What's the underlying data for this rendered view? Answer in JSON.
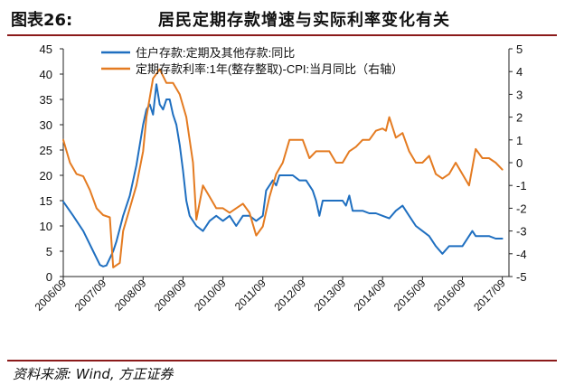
{
  "figure": {
    "number": "图表26:",
    "title": "居民定期存款增速与实际利率变化有关",
    "source": "资料来源: Wind, 方正证券"
  },
  "colors": {
    "series1": "#1f6fc0",
    "series2": "#e47b21",
    "rule": "#8b1a1a",
    "axis": "#222222"
  },
  "chart_data": {
    "type": "line",
    "grid": false,
    "legend_position": "top-left",
    "x_ticks": [
      "2006/09",
      "2007/09",
      "2008/09",
      "2009/09",
      "2010/09",
      "2011/09",
      "2012/09",
      "2013/09",
      "2014/09",
      "2015/09",
      "2016/09",
      "2017/09"
    ],
    "y_left": {
      "min": 0,
      "max": 45,
      "step": 5,
      "ticks": [
        "0",
        "5",
        "10",
        "15",
        "20",
        "25",
        "30",
        "35",
        "40",
        "45"
      ]
    },
    "y_right": {
      "min": -5,
      "max": 5,
      "step": 1,
      "ticks": [
        "-5",
        "-4",
        "-3",
        "-2",
        "-1",
        "0",
        "1",
        "2",
        "3",
        "4",
        "5"
      ]
    },
    "series": [
      {
        "name": "住户存款:定期及其他存款:同比",
        "axis": "left",
        "color": "#1f6fc0",
        "x": [
          "2006-09",
          "2006-12",
          "2007-03",
          "2007-06",
          "2007-08",
          "2007-09",
          "2007-10",
          "2007-12",
          "2008-01",
          "2008-03",
          "2008-05",
          "2008-07",
          "2008-09",
          "2008-10",
          "2008-11",
          "2008-12",
          "2009-01",
          "2009-02",
          "2009-03",
          "2009-04",
          "2009-05",
          "2009-06",
          "2009-07",
          "2009-08",
          "2009-09",
          "2009-10",
          "2009-11",
          "2010-01",
          "2010-03",
          "2010-05",
          "2010-07",
          "2010-09",
          "2010-11",
          "2011-01",
          "2011-03",
          "2011-05",
          "2011-07",
          "2011-09",
          "2011-10",
          "2011-12",
          "2012-01",
          "2012-02",
          "2012-04",
          "2012-06",
          "2012-08",
          "2012-10",
          "2012-12",
          "2013-01",
          "2013-02",
          "2013-03",
          "2013-05",
          "2013-07",
          "2013-09",
          "2013-10",
          "2013-11",
          "2013-12",
          "2014-01",
          "2014-03",
          "2014-05",
          "2014-07",
          "2014-09",
          "2014-11",
          "2015-01",
          "2015-03",
          "2015-05",
          "2015-07",
          "2015-09",
          "2015-11",
          "2016-01",
          "2016-03",
          "2016-05",
          "2016-07",
          "2016-09",
          "2016-10",
          "2016-12",
          "2017-01",
          "2017-03",
          "2017-05",
          "2017-07",
          "2017-09"
        ],
        "values": [
          14.8,
          12,
          9,
          5,
          2.3,
          2,
          2.2,
          5,
          7,
          12,
          16,
          22,
          30,
          33,
          34,
          32,
          38,
          34,
          33,
          35,
          35,
          32,
          30,
          26,
          21,
          15,
          12,
          10,
          9,
          11,
          12,
          11,
          12,
          10,
          12,
          12,
          11,
          12,
          17,
          19,
          18,
          20,
          20,
          20,
          19,
          19,
          17,
          15,
          12,
          15,
          15,
          15,
          15,
          14,
          16,
          13,
          13,
          13,
          12.5,
          12.5,
          12,
          11.5,
          13,
          14,
          12,
          10,
          9,
          8,
          6,
          4.5,
          6,
          6,
          6,
          7,
          9,
          8,
          8,
          8,
          7.5,
          7.5
        ]
      },
      {
        "name": "定期存款利率:1年(整存整取)-CPI:当月同比（右轴）",
        "axis": "right",
        "color": "#e47b21",
        "x": [
          "2006-09",
          "2006-11",
          "2007-01",
          "2007-03",
          "2007-05",
          "2007-07",
          "2007-09",
          "2007-11",
          "2007-12",
          "2008-02",
          "2008-03",
          "2008-05",
          "2008-07",
          "2008-09",
          "2008-10",
          "2008-12",
          "2009-02",
          "2009-04",
          "2009-06",
          "2009-08",
          "2009-10",
          "2009-12",
          "2010-01",
          "2010-03",
          "2010-05",
          "2010-07",
          "2010-09",
          "2010-11",
          "2011-01",
          "2011-03",
          "2011-05",
          "2011-07",
          "2011-09",
          "2011-11",
          "2012-01",
          "2012-03",
          "2012-05",
          "2012-07",
          "2012-09",
          "2012-11",
          "2013-01",
          "2013-03",
          "2013-05",
          "2013-07",
          "2013-09",
          "2013-11",
          "2014-01",
          "2014-03",
          "2014-05",
          "2014-07",
          "2014-09",
          "2014-10",
          "2014-11",
          "2015-01",
          "2015-03",
          "2015-05",
          "2015-07",
          "2015-09",
          "2015-11",
          "2016-01",
          "2016-03",
          "2016-05",
          "2016-07",
          "2016-09",
          "2016-11",
          "2017-01",
          "2017-03",
          "2017-05",
          "2017-07",
          "2017-09"
        ],
        "values": [
          1,
          0,
          -0.5,
          -0.6,
          -1.2,
          -2,
          -2.3,
          -2.4,
          -4.6,
          -4.4,
          -3,
          -2,
          -1,
          0.5,
          2,
          3.7,
          4.1,
          3.5,
          3.5,
          3,
          2,
          0,
          -2.5,
          -1,
          -1.5,
          -2,
          -2,
          -2.2,
          -2,
          -1.8,
          -2.2,
          -3.2,
          -2.8,
          -1.5,
          -0.5,
          0,
          1,
          1,
          1,
          0.2,
          0.5,
          0.5,
          0.5,
          0,
          0,
          0.5,
          0.7,
          1,
          1,
          1.4,
          1.5,
          1.4,
          2,
          1.1,
          1.3,
          0.5,
          0,
          0,
          0.3,
          -0.5,
          -0.7,
          -0.5,
          0,
          -0.5,
          -1,
          0.6,
          0.2,
          0.2,
          0,
          -0.3
        ]
      }
    ]
  }
}
